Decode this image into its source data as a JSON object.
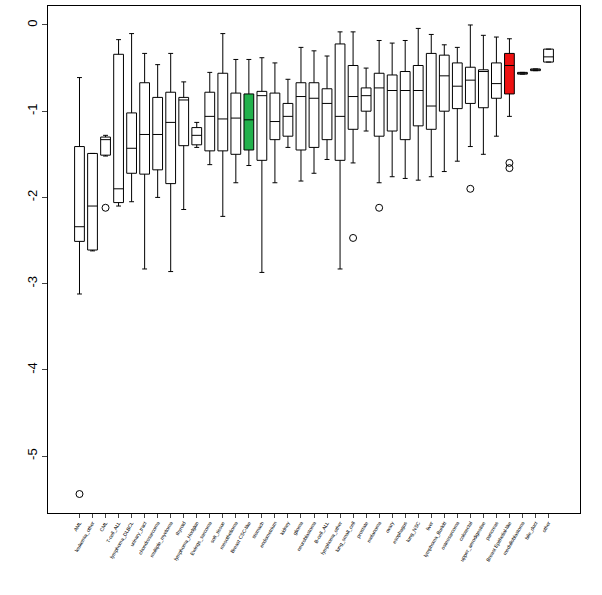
{
  "chart_data": {
    "type": "box",
    "categories": [
      "AML",
      "leukemia_other",
      "CML",
      "T-cell_ALL",
      "lymphoma_DLBCL",
      "urinary_tract",
      "chondrosarcoma",
      "multiple_myeloma",
      "thyroid",
      "lymphoma_Hodgkin",
      "Ewings_sarcoma",
      "soft_tissue",
      "mesothelioma",
      "Breast CSC-like",
      "stomach",
      "endometrium",
      "kidney",
      "glioma",
      "neuroblastoma",
      "B-cell_ALL",
      "lymphoma_other",
      "lung_small_cell",
      "prostate",
      "melanoma",
      "ovary",
      "esophagus",
      "lung_NSC",
      "liver",
      "lymphoma_Burkitt",
      "osteosarcoma",
      "colorectal",
      "upper_aerodigestive",
      "pancreas",
      "Breast Epithelial-like",
      "medulloblastoma",
      "bile_duct",
      "other"
    ],
    "lower": [
      -3.12,
      -2.62,
      -1.52,
      -2.1,
      -2.05,
      -2.83,
      -2.0,
      -2.86,
      -2.14,
      -1.42,
      -1.62,
      -2.22,
      -1.83,
      -1.63,
      -2.87,
      -1.83,
      -1.42,
      -1.81,
      -1.72,
      -1.56,
      -2.83,
      -1.6,
      -1.23,
      -1.83,
      -1.76,
      -1.78,
      -1.8,
      -1.76,
      -1.7,
      -1.58,
      -1.41,
      -1.5,
      -1.29,
      -1.06,
      -0.57,
      -0.53,
      -0.43
    ],
    "q1": [
      -2.51,
      -2.61,
      -1.51,
      -2.06,
      -1.72,
      -1.73,
      -1.68,
      -1.84,
      -1.4,
      -1.39,
      -1.46,
      -1.46,
      -1.5,
      -1.45,
      -1.57,
      -1.33,
      -1.29,
      -1.45,
      -1.42,
      -1.33,
      -1.57,
      -1.21,
      -1.0,
      -1.29,
      -1.23,
      -1.33,
      -1.17,
      -1.21,
      -1.0,
      -0.97,
      -0.91,
      -0.96,
      -0.85,
      -0.8,
      -0.57,
      -0.53,
      -0.43
    ],
    "median": [
      -2.34,
      -2.1,
      -1.33,
      -1.9,
      -1.43,
      -1.27,
      -1.27,
      -1.13,
      -0.87,
      -1.28,
      -1.06,
      -1.09,
      -1.08,
      -1.1,
      -0.82,
      -1.12,
      -1.06,
      -0.83,
      -0.85,
      -0.91,
      -1.06,
      -0.83,
      -0.82,
      -0.73,
      -0.76,
      -0.76,
      -0.76,
      -0.94,
      -0.59,
      -0.71,
      -0.64,
      -0.54,
      -0.68,
      -0.47,
      -0.56,
      -0.52,
      -0.37
    ],
    "q3": [
      -1.41,
      -1.49,
      -1.3,
      -0.34,
      -1.02,
      -0.67,
      -0.84,
      -0.78,
      -0.84,
      -1.19,
      -0.78,
      -0.56,
      -0.79,
      -0.8,
      -0.77,
      -0.79,
      -0.91,
      -0.67,
      -0.67,
      -0.74,
      -0.22,
      -0.47,
      -0.73,
      -0.56,
      -0.58,
      -0.54,
      -0.47,
      -0.33,
      -0.35,
      -0.44,
      -0.49,
      -0.52,
      -0.44,
      -0.33,
      -0.55,
      -0.51,
      -0.28
    ],
    "upper": [
      -0.61,
      -1.49,
      -1.28,
      -0.17,
      -0.1,
      -0.33,
      -0.46,
      -0.33,
      -0.66,
      -1.13,
      -0.55,
      -0.1,
      -0.4,
      -0.4,
      -0.38,
      -0.44,
      -0.63,
      -0.26,
      -0.3,
      -0.36,
      -0.08,
      -0.08,
      -0.5,
      -0.18,
      -0.21,
      -0.18,
      -0.04,
      -0.11,
      -0.23,
      -0.26,
      0.0,
      -0.12,
      -0.14,
      -0.16,
      -0.55,
      -0.51,
      -0.28
    ],
    "outliers": [
      [
        -5.44
      ],
      [],
      [
        -2.12
      ],
      [],
      [],
      [],
      [],
      [],
      [],
      [],
      [],
      [],
      [],
      [],
      [],
      [],
      [],
      [],
      [],
      [],
      [],
      [
        -2.47
      ],
      [],
      [
        -2.12
      ],
      [],
      [],
      [],
      [],
      [],
      [],
      [
        -1.9
      ],
      [],
      [],
      [
        -1.6,
        -1.66
      ],
      [],
      [],
      []
    ],
    "colors": [
      "#ffffff",
      "#ffffff",
      "#ffffff",
      "#ffffff",
      "#ffffff",
      "#ffffff",
      "#ffffff",
      "#ffffff",
      "#ffffff",
      "#ffffff",
      "#ffffff",
      "#ffffff",
      "#ffffff",
      "#22b14c",
      "#ffffff",
      "#ffffff",
      "#ffffff",
      "#ffffff",
      "#ffffff",
      "#ffffff",
      "#ffffff",
      "#ffffff",
      "#ffffff",
      "#ffffff",
      "#ffffff",
      "#ffffff",
      "#ffffff",
      "#ffffff",
      "#ffffff",
      "#ffffff",
      "#ffffff",
      "#ffffff",
      "#ffffff",
      "#ee1111",
      "#ffffff",
      "#ffffff",
      "#ffffff"
    ],
    "ylim": [
      -5.66,
      0.22
    ],
    "yticks": [
      0,
      -1,
      -2,
      -3,
      -4,
      -5
    ],
    "grid": false
  }
}
